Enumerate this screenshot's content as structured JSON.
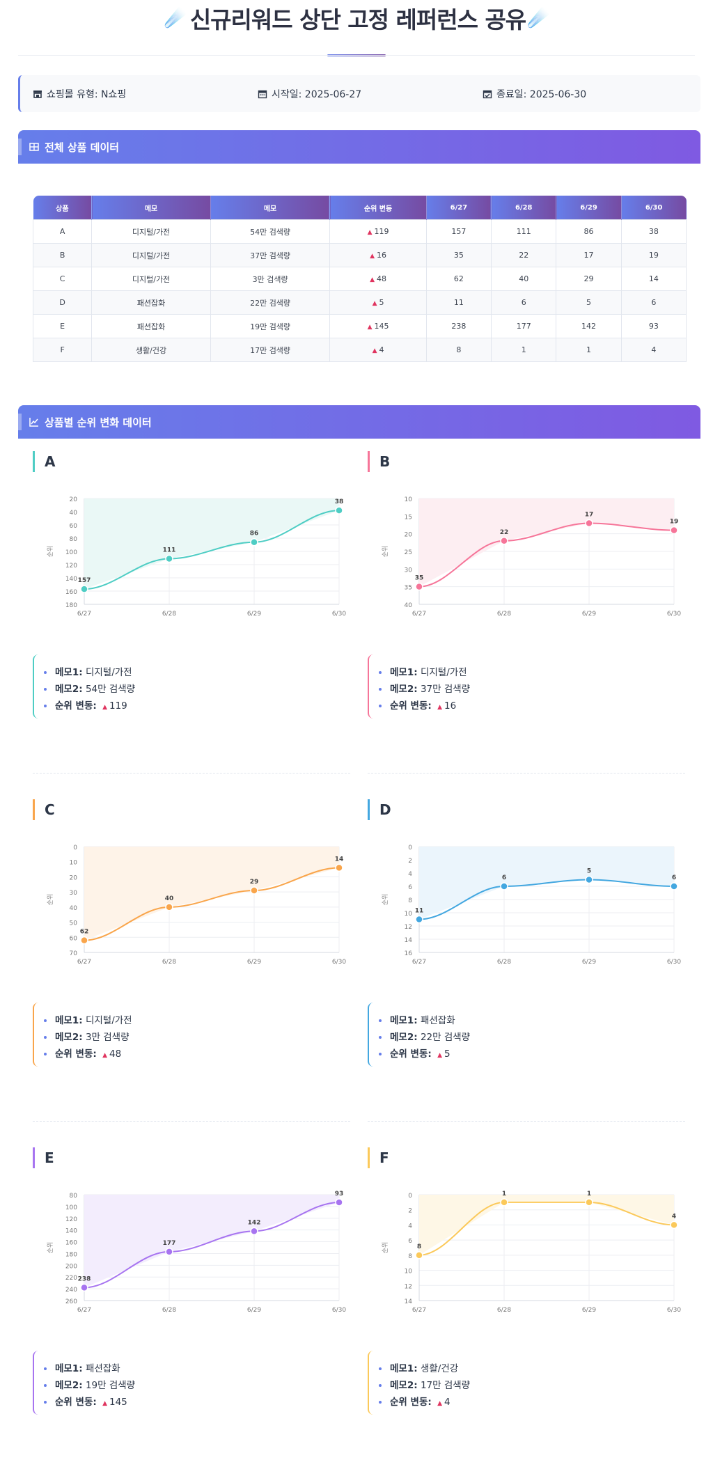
{
  "header": {
    "title": "신규리워드 상단 고정 레퍼런스 공유",
    "emoji_left": "☄️",
    "emoji_right": "☄️"
  },
  "info": {
    "mall_label": "쇼핑몰 유형: N쇼핑",
    "start_label": "시작일: 2025-06-27",
    "end_label": "종료일: 2025-06-30"
  },
  "sections": {
    "table_title": "전체 상품 데이터",
    "chart_title": "상품별 순위 변화 데이터"
  },
  "table": {
    "headers": [
      "상품",
      "메모",
      "메모",
      "순위 변동",
      "6/27",
      "6/28",
      "6/29",
      "6/30"
    ],
    "rows": [
      [
        "A",
        "디지털/가전",
        "54만 검색량",
        "119",
        "157",
        "111",
        "86",
        "38"
      ],
      [
        "B",
        "디지털/가전",
        "37만 검색량",
        "16",
        "35",
        "22",
        "17",
        "19"
      ],
      [
        "C",
        "디지털/가전",
        "3만 검색량",
        "48",
        "62",
        "40",
        "29",
        "14"
      ],
      [
        "D",
        "패션잡화",
        "22만 검색량",
        "5",
        "11",
        "6",
        "5",
        "6"
      ],
      [
        "E",
        "패션잡화",
        "19만 검색량",
        "145",
        "238",
        "177",
        "142",
        "93"
      ],
      [
        "F",
        "생활/건강",
        "17만 검색량",
        "4",
        "8",
        "1",
        "1",
        "4"
      ]
    ]
  },
  "memo_labels": {
    "memo1": "메모1:",
    "memo2": "메모2:",
    "change": "순위 변동:"
  },
  "colors": {
    "accent": "#667eea",
    "accent2": "#764ba2",
    "up": "#e0345f"
  },
  "chart_data": [
    {
      "type": "line",
      "title": "A",
      "x": [
        "6/27",
        "6/28",
        "6/29",
        "6/30"
      ],
      "ylabel": "순위",
      "series": [
        {
          "values": [
            157,
            111,
            86,
            38
          ]
        }
      ],
      "ylim": [
        20,
        180
      ],
      "yticks": [
        20,
        40,
        60,
        80,
        100,
        120,
        140,
        160,
        180
      ],
      "reversed": true,
      "color": "#4ecdc4",
      "fill": "#eaf8f6",
      "memo1": "디지털/가전",
      "memo2": "54만 검색량",
      "change": "119"
    },
    {
      "type": "line",
      "title": "B",
      "x": [
        "6/27",
        "6/28",
        "6/29",
        "6/30"
      ],
      "ylabel": "순위",
      "series": [
        {
          "values": [
            35,
            22,
            17,
            19
          ]
        }
      ],
      "ylim": [
        10,
        40
      ],
      "yticks": [
        10,
        15,
        20,
        25,
        30,
        35,
        40
      ],
      "reversed": true,
      "color": "#f67599",
      "fill": "#fdeef2",
      "memo1": "디지털/가전",
      "memo2": "37만 검색량",
      "change": "16"
    },
    {
      "type": "line",
      "title": "C",
      "x": [
        "6/27",
        "6/28",
        "6/29",
        "6/30"
      ],
      "ylabel": "순위",
      "series": [
        {
          "values": [
            62,
            40,
            29,
            14
          ]
        }
      ],
      "ylim": [
        0,
        70
      ],
      "yticks": [
        0,
        10,
        20,
        30,
        40,
        50,
        60,
        70
      ],
      "reversed": true,
      "color": "#f9a54b",
      "fill": "#fef3e8",
      "memo1": "디지털/가전",
      "memo2": "3만 검색량",
      "change": "48"
    },
    {
      "type": "line",
      "title": "D",
      "x": [
        "6/27",
        "6/28",
        "6/29",
        "6/30"
      ],
      "ylabel": "순위",
      "series": [
        {
          "values": [
            11,
            6,
            5,
            6
          ]
        }
      ],
      "ylim": [
        0,
        16
      ],
      "yticks": [
        0,
        2,
        4,
        6,
        8,
        10,
        12,
        14,
        16
      ],
      "reversed": true,
      "color": "#43a7e0",
      "fill": "#ebf5fc",
      "memo1": "패션잡화",
      "memo2": "22만 검색량",
      "change": "5"
    },
    {
      "type": "line",
      "title": "E",
      "x": [
        "6/27",
        "6/28",
        "6/29",
        "6/30"
      ],
      "ylabel": "순위",
      "series": [
        {
          "values": [
            238,
            177,
            142,
            93
          ]
        }
      ],
      "ylim": [
        80,
        260
      ],
      "yticks": [
        80,
        100,
        120,
        140,
        160,
        180,
        200,
        220,
        240,
        260
      ],
      "reversed": true,
      "color": "#a774f0",
      "fill": "#f3edfd",
      "memo1": "패션잡화",
      "memo2": "19만 검색량",
      "change": "145"
    },
    {
      "type": "line",
      "title": "F",
      "x": [
        "6/27",
        "6/28",
        "6/29",
        "6/30"
      ],
      "ylabel": "순위",
      "series": [
        {
          "values": [
            8,
            1,
            1,
            4
          ]
        }
      ],
      "ylim": [
        0,
        14
      ],
      "yticks": [
        0,
        2,
        4,
        6,
        8,
        10,
        12,
        14
      ],
      "reversed": true,
      "color": "#fbc95a",
      "fill": "#fef7e6",
      "memo1": "생활/건강",
      "memo2": "17만 검색량",
      "change": "4"
    }
  ]
}
